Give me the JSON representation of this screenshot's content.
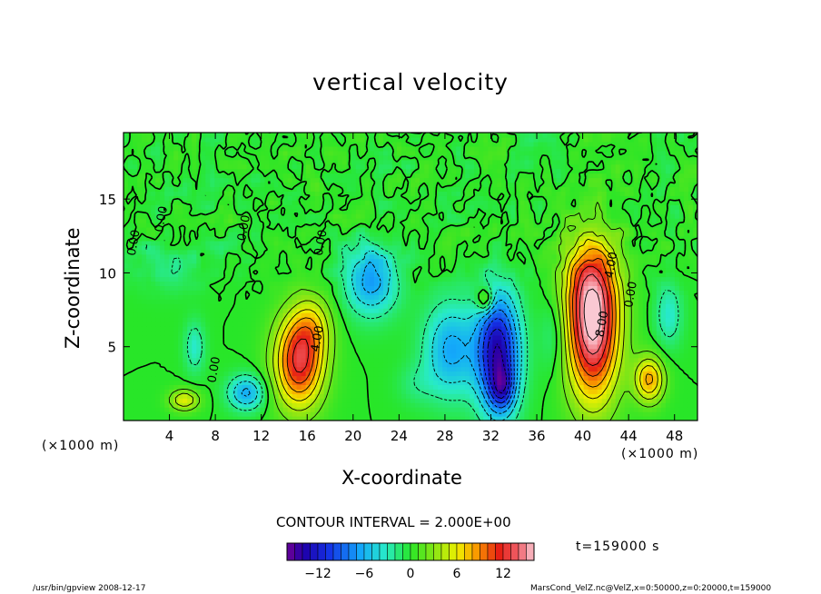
{
  "chart_data": {
    "type": "heatmap",
    "title": "vertical velocity",
    "xlabel": "X-coordinate",
    "ylabel": "Z-coordinate",
    "x_unit_label": "(×1000 m)",
    "xlim": [
      0,
      50
    ],
    "ylim": [
      0,
      19.5
    ],
    "xticks": [
      4,
      8,
      12,
      16,
      20,
      24,
      28,
      32,
      36,
      40,
      44,
      48
    ],
    "yticks": [
      5,
      10,
      15
    ],
    "contour_interval": "CONTOUR INTERVAL = 2.000E+00",
    "time_label": "t=159000 s",
    "colorbar": {
      "range": [
        -16,
        16
      ],
      "ticks": [
        -12,
        -6,
        0,
        6,
        12
      ]
    },
    "contour_labels": [
      {
        "text": "0.00",
        "x": 1.2,
        "y": 12
      },
      {
        "text": "0.00",
        "x": 3.6,
        "y": 13.6
      },
      {
        "text": "0.00",
        "x": 10.8,
        "y": 13
      },
      {
        "text": "0.00",
        "x": 17.5,
        "y": 12
      },
      {
        "text": "0.00",
        "x": 8.2,
        "y": 3.4
      },
      {
        "text": "0.00",
        "x": 44.5,
        "y": 8.5
      },
      {
        "text": "4.00",
        "x": 17.2,
        "y": 5.5
      },
      {
        "text": "4.00",
        "x": 42.8,
        "y": 10.5
      },
      {
        "text": "8.00",
        "x": 42,
        "y": 6.5
      }
    ],
    "features": [
      {
        "x": 15.3,
        "z": 4.0,
        "sx": 1.5,
        "sz": 2.2,
        "w": 12.5
      },
      {
        "x": 16.5,
        "z": 6.5,
        "sx": 1.2,
        "sz": 1.5,
        "w": 4
      },
      {
        "x": 5.3,
        "z": 1.4,
        "sx": 0.9,
        "sz": 0.5,
        "w": 6
      },
      {
        "x": 45.8,
        "z": 2.8,
        "sx": 0.9,
        "sz": 1.1,
        "w": 8.5
      },
      {
        "x": 31.5,
        "z": 8.2,
        "sx": 0.5,
        "sz": 0.6,
        "w": 6
      },
      {
        "x": 40.9,
        "z": 6.6,
        "sx": 1.6,
        "sz": 3.6,
        "w": 16.5
      },
      {
        "x": 40.2,
        "z": 9.5,
        "sx": 1.8,
        "sz": 2.0,
        "w": 3
      },
      {
        "x": 32.6,
        "z": 4.6,
        "sx": 1.3,
        "sz": 2.8,
        "w": -14
      },
      {
        "x": 33.0,
        "z": 2.2,
        "sx": 0.7,
        "sz": 1.0,
        "w": -6
      },
      {
        "x": 28.5,
        "z": 4.8,
        "sx": 1.6,
        "sz": 2.2,
        "w": -6.5
      },
      {
        "x": 21.6,
        "z": 9.6,
        "sx": 1.6,
        "sz": 1.7,
        "w": -7
      },
      {
        "x": 10.7,
        "z": 1.9,
        "sx": 1.1,
        "sz": 0.8,
        "w": -6.5
      },
      {
        "x": 6.2,
        "z": 5.0,
        "sx": 0.6,
        "sz": 1.2,
        "w": -3.5
      },
      {
        "x": 47.5,
        "z": 7.2,
        "sx": 0.8,
        "sz": 1.5,
        "w": -3.5
      },
      {
        "x": 37.5,
        "z": 6.0,
        "sx": 0.8,
        "sz": 2.0,
        "w": -2.5
      },
      {
        "x": 3.8,
        "z": 10.5,
        "sx": 2.0,
        "sz": 1.2,
        "w": -1.8
      },
      {
        "x": 25.5,
        "z": 2.5,
        "sx": 1.2,
        "sz": 1.0,
        "w": -1.5
      }
    ]
  },
  "footer": {
    "left": "/usr/bin/gpview   2008-12-17",
    "right": "MarsCond_VelZ.nc@VelZ,x=0:50000,z=0:20000,t=159000"
  }
}
